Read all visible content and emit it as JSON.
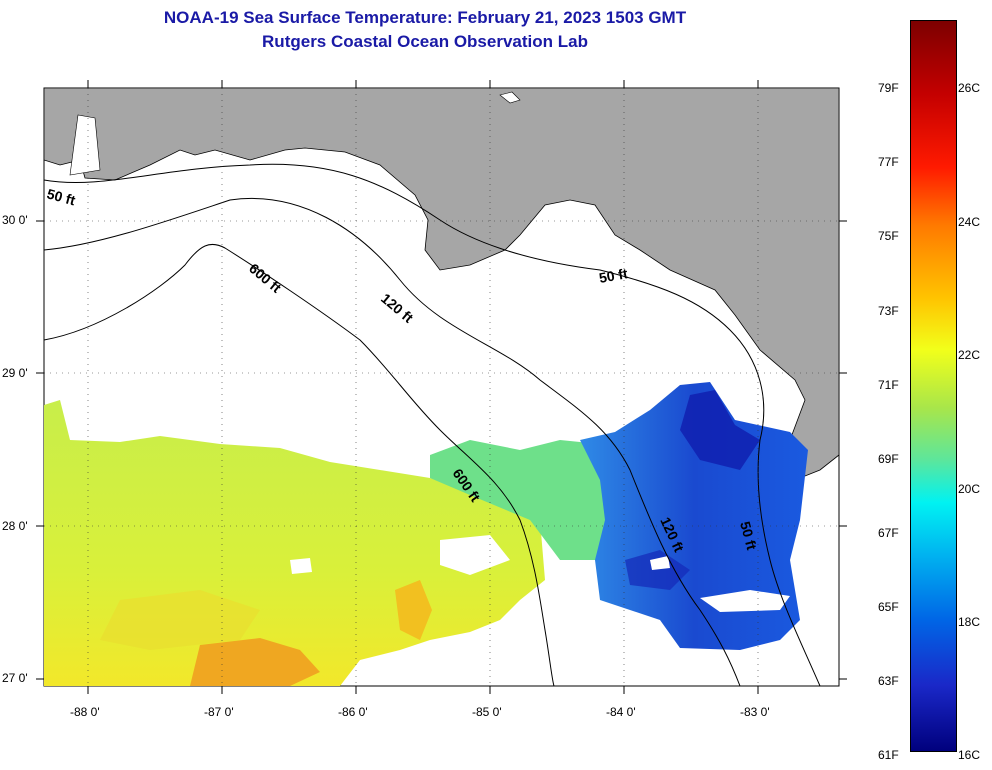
{
  "header": {
    "title": "NOAA-19 Sea Surface Temperature:  February 21, 2023 1503 GMT",
    "subtitle": "Rutgers Coastal Ocean Observation Lab"
  },
  "axes": {
    "latitudes": [
      {
        "label": "30 0'",
        "lat": 30
      },
      {
        "label": "29 0'",
        "lat": 29
      },
      {
        "label": "28 0'",
        "lat": 28
      },
      {
        "label": "27 0'",
        "lat": 27
      }
    ],
    "longitudes": [
      {
        "label": "-88 0'",
        "lon": -88
      },
      {
        "label": "-87 0'",
        "lon": -87
      },
      {
        "label": "-86 0'",
        "lon": -86
      },
      {
        "label": "-85 0'",
        "lon": -85
      },
      {
        "label": "-84 0'",
        "lon": -84
      },
      {
        "label": "-83 0'",
        "lon": -83
      }
    ]
  },
  "isobaths": [
    "50 ft",
    "600 ft",
    "120 ft",
    "50 ft",
    "600 ft",
    "120 ft",
    "50 ft"
  ],
  "colorbar": {
    "fahrenheit": [
      "79F",
      "77F",
      "75F",
      "73F",
      "71F",
      "69F",
      "67F",
      "65F",
      "63F",
      "61F"
    ],
    "celsius": [
      "26C",
      "24C",
      "22C",
      "20C",
      "18C",
      "16C"
    ]
  },
  "colors": {
    "land": "#a6a6a6",
    "title": "#1a1aa6"
  }
}
